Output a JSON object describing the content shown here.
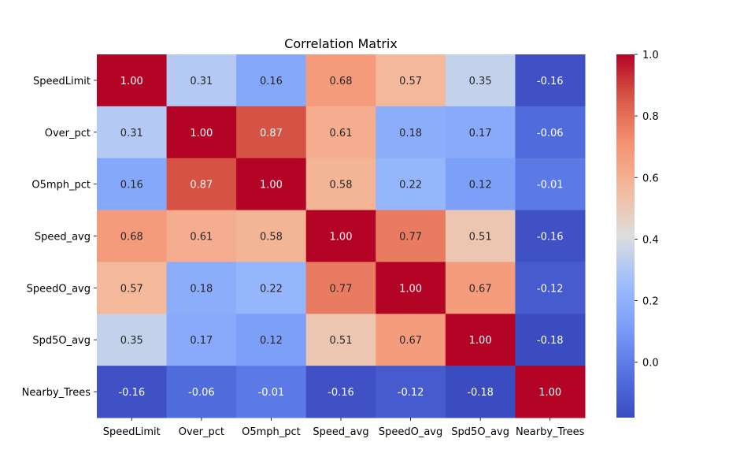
{
  "chart_data": {
    "type": "heatmap",
    "title": "Correlation Matrix",
    "xlabel": "",
    "ylabel": "",
    "row_labels": [
      "SpeedLimit",
      "Over_pct",
      "O5mph_pct",
      "Speed_avg",
      "SpeedO_avg",
      "Spd5O_avg",
      "Nearby_Trees"
    ],
    "col_labels": [
      "SpeedLimit",
      "Over_pct",
      "O5mph_pct",
      "Speed_avg",
      "SpeedO_avg",
      "Spd5O_avg",
      "Nearby_Trees"
    ],
    "values": [
      [
        1.0,
        0.31,
        0.16,
        0.68,
        0.57,
        0.35,
        -0.16
      ],
      [
        0.31,
        1.0,
        0.87,
        0.61,
        0.18,
        0.17,
        -0.06
      ],
      [
        0.16,
        0.87,
        1.0,
        0.58,
        0.22,
        0.12,
        -0.01
      ],
      [
        0.68,
        0.61,
        0.58,
        1.0,
        0.77,
        0.51,
        -0.16
      ],
      [
        0.57,
        0.18,
        0.22,
        0.77,
        1.0,
        0.67,
        -0.12
      ],
      [
        0.35,
        0.17,
        0.12,
        0.51,
        0.67,
        1.0,
        -0.18
      ],
      [
        -0.16,
        -0.06,
        -0.01,
        -0.16,
        -0.12,
        -0.18,
        1.0
      ]
    ],
    "colormap": "coolwarm",
    "colorbar": {
      "vmin": -0.18,
      "vmax": 1.0,
      "ticks": [
        0.0,
        0.2,
        0.4,
        0.6,
        0.8,
        1.0
      ],
      "tick_labels": [
        "0.0",
        "0.2",
        "0.4",
        "0.6",
        "0.8",
        "1.0"
      ]
    },
    "annot_format": "0.00",
    "legend": "colorbar-right",
    "grid": false
  }
}
